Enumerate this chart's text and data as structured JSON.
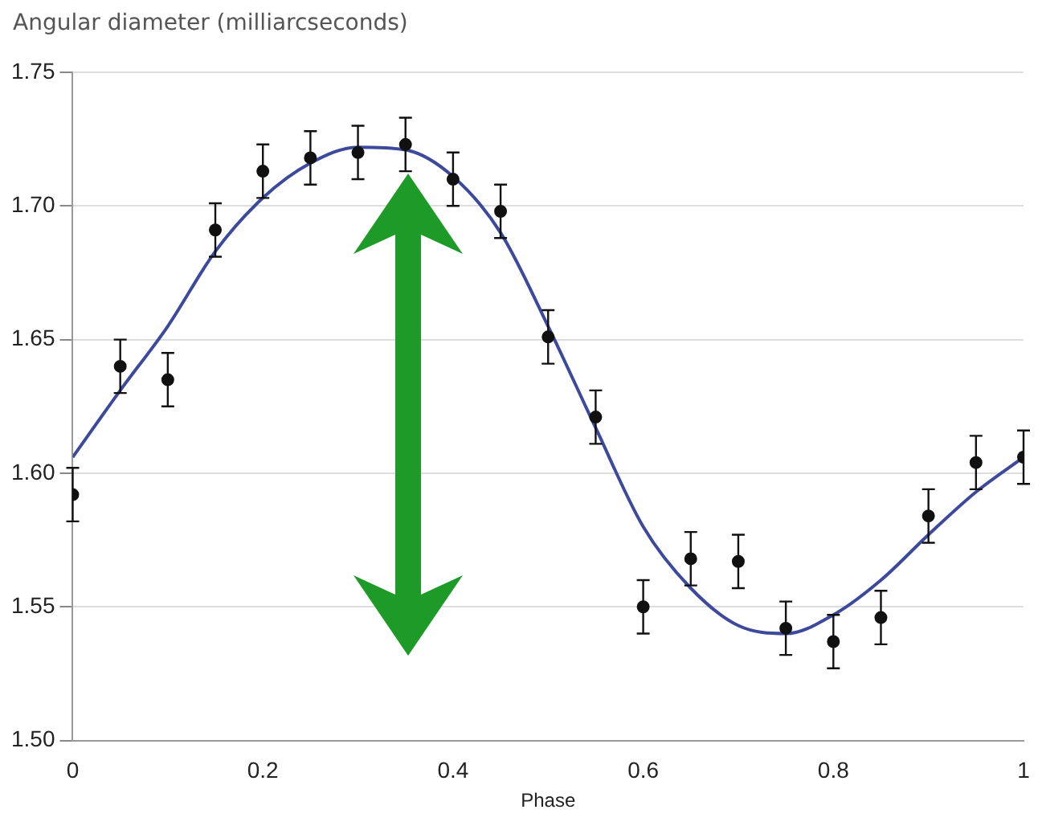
{
  "chart_data": {
    "type": "scatter",
    "ylabel": "Angular diameter (milliarcseconds)",
    "xlabel": "Phase",
    "x": [
      0,
      0.05,
      0.1,
      0.15,
      0.2,
      0.25,
      0.3,
      0.35,
      0.4,
      0.45,
      0.5,
      0.55,
      0.6,
      0.65,
      0.7,
      0.75,
      0.8,
      0.85,
      0.9,
      0.95,
      1
    ],
    "series": [
      {
        "color": "#111111",
        "values": [
          1.592,
          1.64,
          1.635,
          1.691,
          1.713,
          1.718,
          1.72,
          1.723,
          1.71,
          1.698,
          1.651,
          1.621,
          1.55,
          1.568,
          1.567,
          1.542,
          1.537,
          1.546,
          1.584,
          1.604,
          1.606
        ],
        "errors": [
          0.01,
          0.01,
          0.01,
          0.01,
          0.01,
          0.01,
          0.01,
          0.01,
          0.01,
          0.01,
          0.01,
          0.01,
          0.01,
          0.01,
          0.01,
          0.01,
          0.01,
          0.01,
          0.01,
          0.01,
          0.01
        ],
        "marker": "circle"
      },
      {
        "type": "line",
        "color": "#3d4a9c",
        "marker": "none",
        "line_style": "solid",
        "x": [
          0,
          0.05,
          0.1,
          0.15,
          0.2,
          0.25,
          0.3,
          0.35,
          0.4,
          0.45,
          0.5,
          0.55,
          0.6,
          0.65,
          0.7,
          0.75,
          0.8,
          0.85,
          0.9,
          0.95,
          1
        ],
        "values": [
          1.606,
          1.631,
          1.655,
          1.683,
          1.703,
          1.716,
          1.722,
          1.721,
          1.711,
          1.69,
          1.655,
          1.617,
          1.58,
          1.557,
          1.543,
          1.54,
          1.547,
          1.56,
          1.577,
          1.593,
          1.606
        ]
      }
    ],
    "xlim": [
      0,
      1
    ],
    "xticks": [
      0,
      0.2,
      0.4,
      0.6,
      0.8,
      1
    ],
    "ylim": [
      1.5,
      1.75
    ],
    "yticks": [
      {
        "value": 1.5,
        "label": "1.50"
      },
      {
        "value": 1.55,
        "label": "1.55"
      },
      {
        "value": 1.6,
        "label": "1.60"
      },
      {
        "value": 1.65,
        "label": "1.65"
      },
      {
        "value": 1.7,
        "label": "1.70"
      },
      {
        "value": 1.75,
        "label": "1.75"
      }
    ],
    "grid": "y",
    "legend": false
  }
}
